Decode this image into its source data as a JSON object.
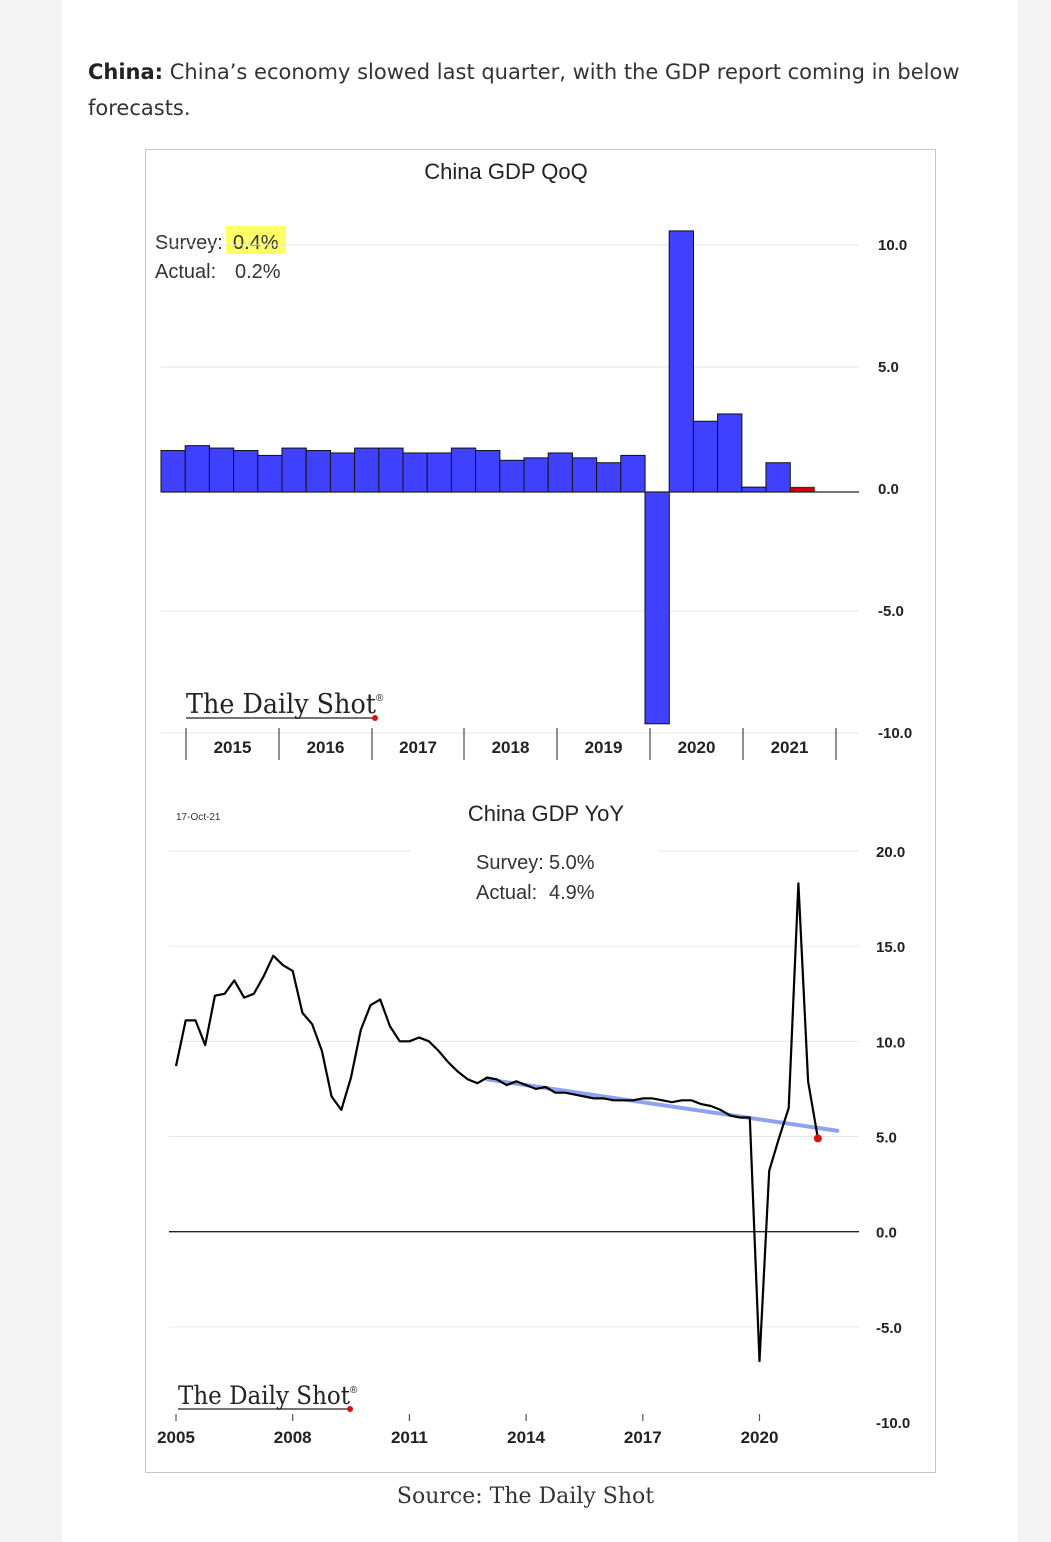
{
  "article": {
    "country_label": "China:",
    "text": " China’s economy slowed last quarter, with the GDP report coming in below forecasts.",
    "source": "Source: The Daily Shot"
  },
  "colors": {
    "bar": "#4040ff",
    "bar_latest": "#cc0000",
    "line": "#000000",
    "trend": "#8ea2f0",
    "highlight": "#ffff66",
    "marker": "#dd1111"
  },
  "chart_data": [
    {
      "type": "bar",
      "title": "China GDP QoQ",
      "annotation": {
        "survey_label": "Survey:",
        "survey_value": "0.4%",
        "actual_label": "Actual:",
        "actual_value": "0.2%"
      },
      "brand": "The Daily Shot",
      "brand_mark": "®",
      "x_tick_labels": [
        "2015",
        "2016",
        "2017",
        "2018",
        "2019",
        "2020",
        "2021"
      ],
      "y_ticks": [
        "10.0",
        "5.0",
        "0.0",
        "-5.0",
        "-10.0"
      ],
      "ylim": [
        -10,
        10
      ],
      "values": [
        1.7,
        1.9,
        1.8,
        1.7,
        1.5,
        1.8,
        1.7,
        1.6,
        1.8,
        1.8,
        1.6,
        1.6,
        1.8,
        1.7,
        1.3,
        1.4,
        1.6,
        1.4,
        1.2,
        1.5,
        -9.5,
        10.7,
        2.9,
        3.2,
        0.2,
        1.2,
        0.2
      ],
      "latest_highlighted": true
    },
    {
      "type": "line",
      "title": "China GDP YoY",
      "date_label": "17-Oct-21",
      "annotation": {
        "survey_label": "Survey:",
        "survey_value": "5.0%",
        "actual_label": "Actual:",
        "actual_value": "4.9%"
      },
      "brand": "The Daily Shot",
      "brand_mark": "®",
      "x_tick_labels": [
        "2005",
        "2008",
        "2011",
        "2014",
        "2017",
        "2020"
      ],
      "y_ticks": [
        "20.0",
        "15.0",
        "10.0",
        "5.0",
        "0.0",
        "-5.0",
        "-10.0"
      ],
      "ylim": [
        -10,
        20
      ],
      "series": [
        {
          "points": [
            [
              2005.0,
              8.7
            ],
            [
              2005.25,
              11.1
            ],
            [
              2005.5,
              11.1
            ],
            [
              2005.75,
              9.8
            ],
            [
              2006.0,
              12.4
            ],
            [
              2006.25,
              12.5
            ],
            [
              2006.5,
              13.2
            ],
            [
              2006.75,
              12.3
            ],
            [
              2007.0,
              12.5
            ],
            [
              2007.25,
              13.4
            ],
            [
              2007.5,
              14.5
            ],
            [
              2007.75,
              14.0
            ],
            [
              2008.0,
              13.7
            ],
            [
              2008.25,
              11.5
            ],
            [
              2008.5,
              10.9
            ],
            [
              2008.75,
              9.5
            ],
            [
              2009.0,
              7.1
            ],
            [
              2009.25,
              6.4
            ],
            [
              2009.5,
              8.1
            ],
            [
              2009.75,
              10.6
            ],
            [
              2010.0,
              11.9
            ],
            [
              2010.25,
              12.2
            ],
            [
              2010.5,
              10.8
            ],
            [
              2010.75,
              10.0
            ],
            [
              2011.0,
              10.0
            ],
            [
              2011.25,
              10.2
            ],
            [
              2011.5,
              10.0
            ],
            [
              2011.75,
              9.5
            ],
            [
              2012.0,
              8.9
            ],
            [
              2012.25,
              8.4
            ],
            [
              2012.5,
              8.0
            ],
            [
              2012.75,
              7.8
            ],
            [
              2013.0,
              8.1
            ],
            [
              2013.25,
              8.0
            ],
            [
              2013.5,
              7.7
            ],
            [
              2013.75,
              7.9
            ],
            [
              2014.0,
              7.7
            ],
            [
              2014.25,
              7.5
            ],
            [
              2014.5,
              7.6
            ],
            [
              2014.75,
              7.3
            ],
            [
              2015.0,
              7.3
            ],
            [
              2015.25,
              7.2
            ],
            [
              2015.5,
              7.1
            ],
            [
              2015.75,
              7.0
            ],
            [
              2016.0,
              7.0
            ],
            [
              2016.25,
              6.9
            ],
            [
              2016.5,
              6.9
            ],
            [
              2016.75,
              6.9
            ],
            [
              2017.0,
              7.0
            ],
            [
              2017.25,
              7.0
            ],
            [
              2017.5,
              6.9
            ],
            [
              2017.75,
              6.8
            ],
            [
              2018.0,
              6.9
            ],
            [
              2018.25,
              6.9
            ],
            [
              2018.5,
              6.7
            ],
            [
              2018.75,
              6.6
            ],
            [
              2019.0,
              6.4
            ],
            [
              2019.25,
              6.1
            ],
            [
              2019.5,
              6.0
            ],
            [
              2019.75,
              6.0
            ],
            [
              2020.0,
              -6.8
            ],
            [
              2020.25,
              3.2
            ],
            [
              2020.5,
              4.9
            ],
            [
              2020.75,
              6.5
            ],
            [
              2021.0,
              18.3
            ],
            [
              2021.25,
              7.9
            ],
            [
              2021.5,
              4.9
            ]
          ]
        },
        {
          "type": "trend",
          "points": [
            [
              2013.0,
              8.0
            ],
            [
              2022.0,
              5.3
            ]
          ]
        }
      ],
      "latest_marker": [
        2021.5,
        4.9
      ]
    }
  ]
}
